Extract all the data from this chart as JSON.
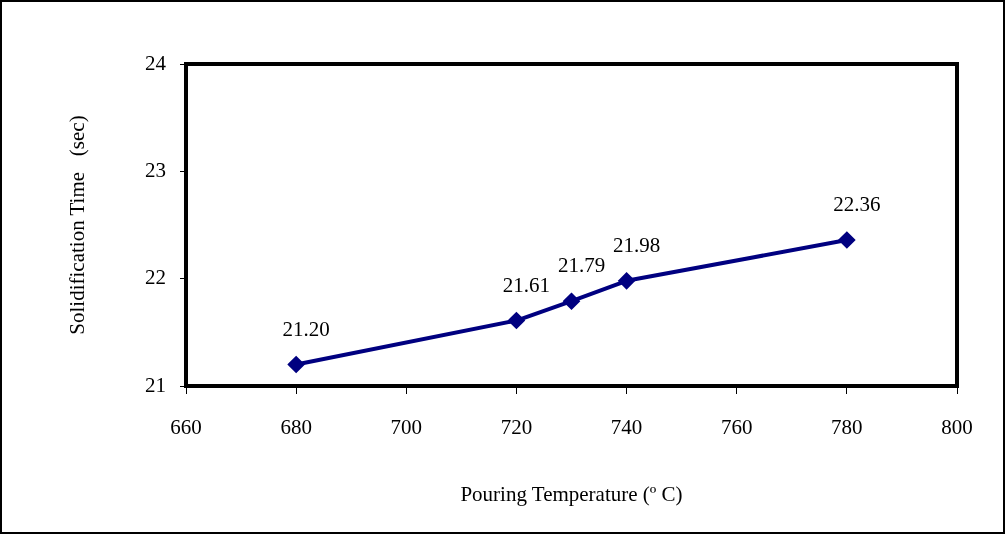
{
  "chart_data": {
    "type": "line",
    "xlabel": "Pouring Temperature (º C)",
    "ylabel": "Solidification Time   (sec)",
    "x": [
      680,
      720,
      730,
      740,
      780
    ],
    "series": [
      {
        "color": "#000080",
        "values": [
          21.2,
          21.61,
          21.79,
          21.98,
          22.36
        ],
        "value_labels": [
          "21.20",
          "21.61",
          "21.79",
          "21.98",
          "22.36"
        ]
      }
    ],
    "xlim": [
      660,
      800
    ],
    "xticks": [
      660,
      680,
      700,
      720,
      740,
      760,
      780,
      800
    ],
    "ylim": [
      21,
      24
    ],
    "yticks": [
      21,
      22,
      23,
      24
    ],
    "marker": "diamond",
    "line_style": "solid",
    "legend": false
  }
}
